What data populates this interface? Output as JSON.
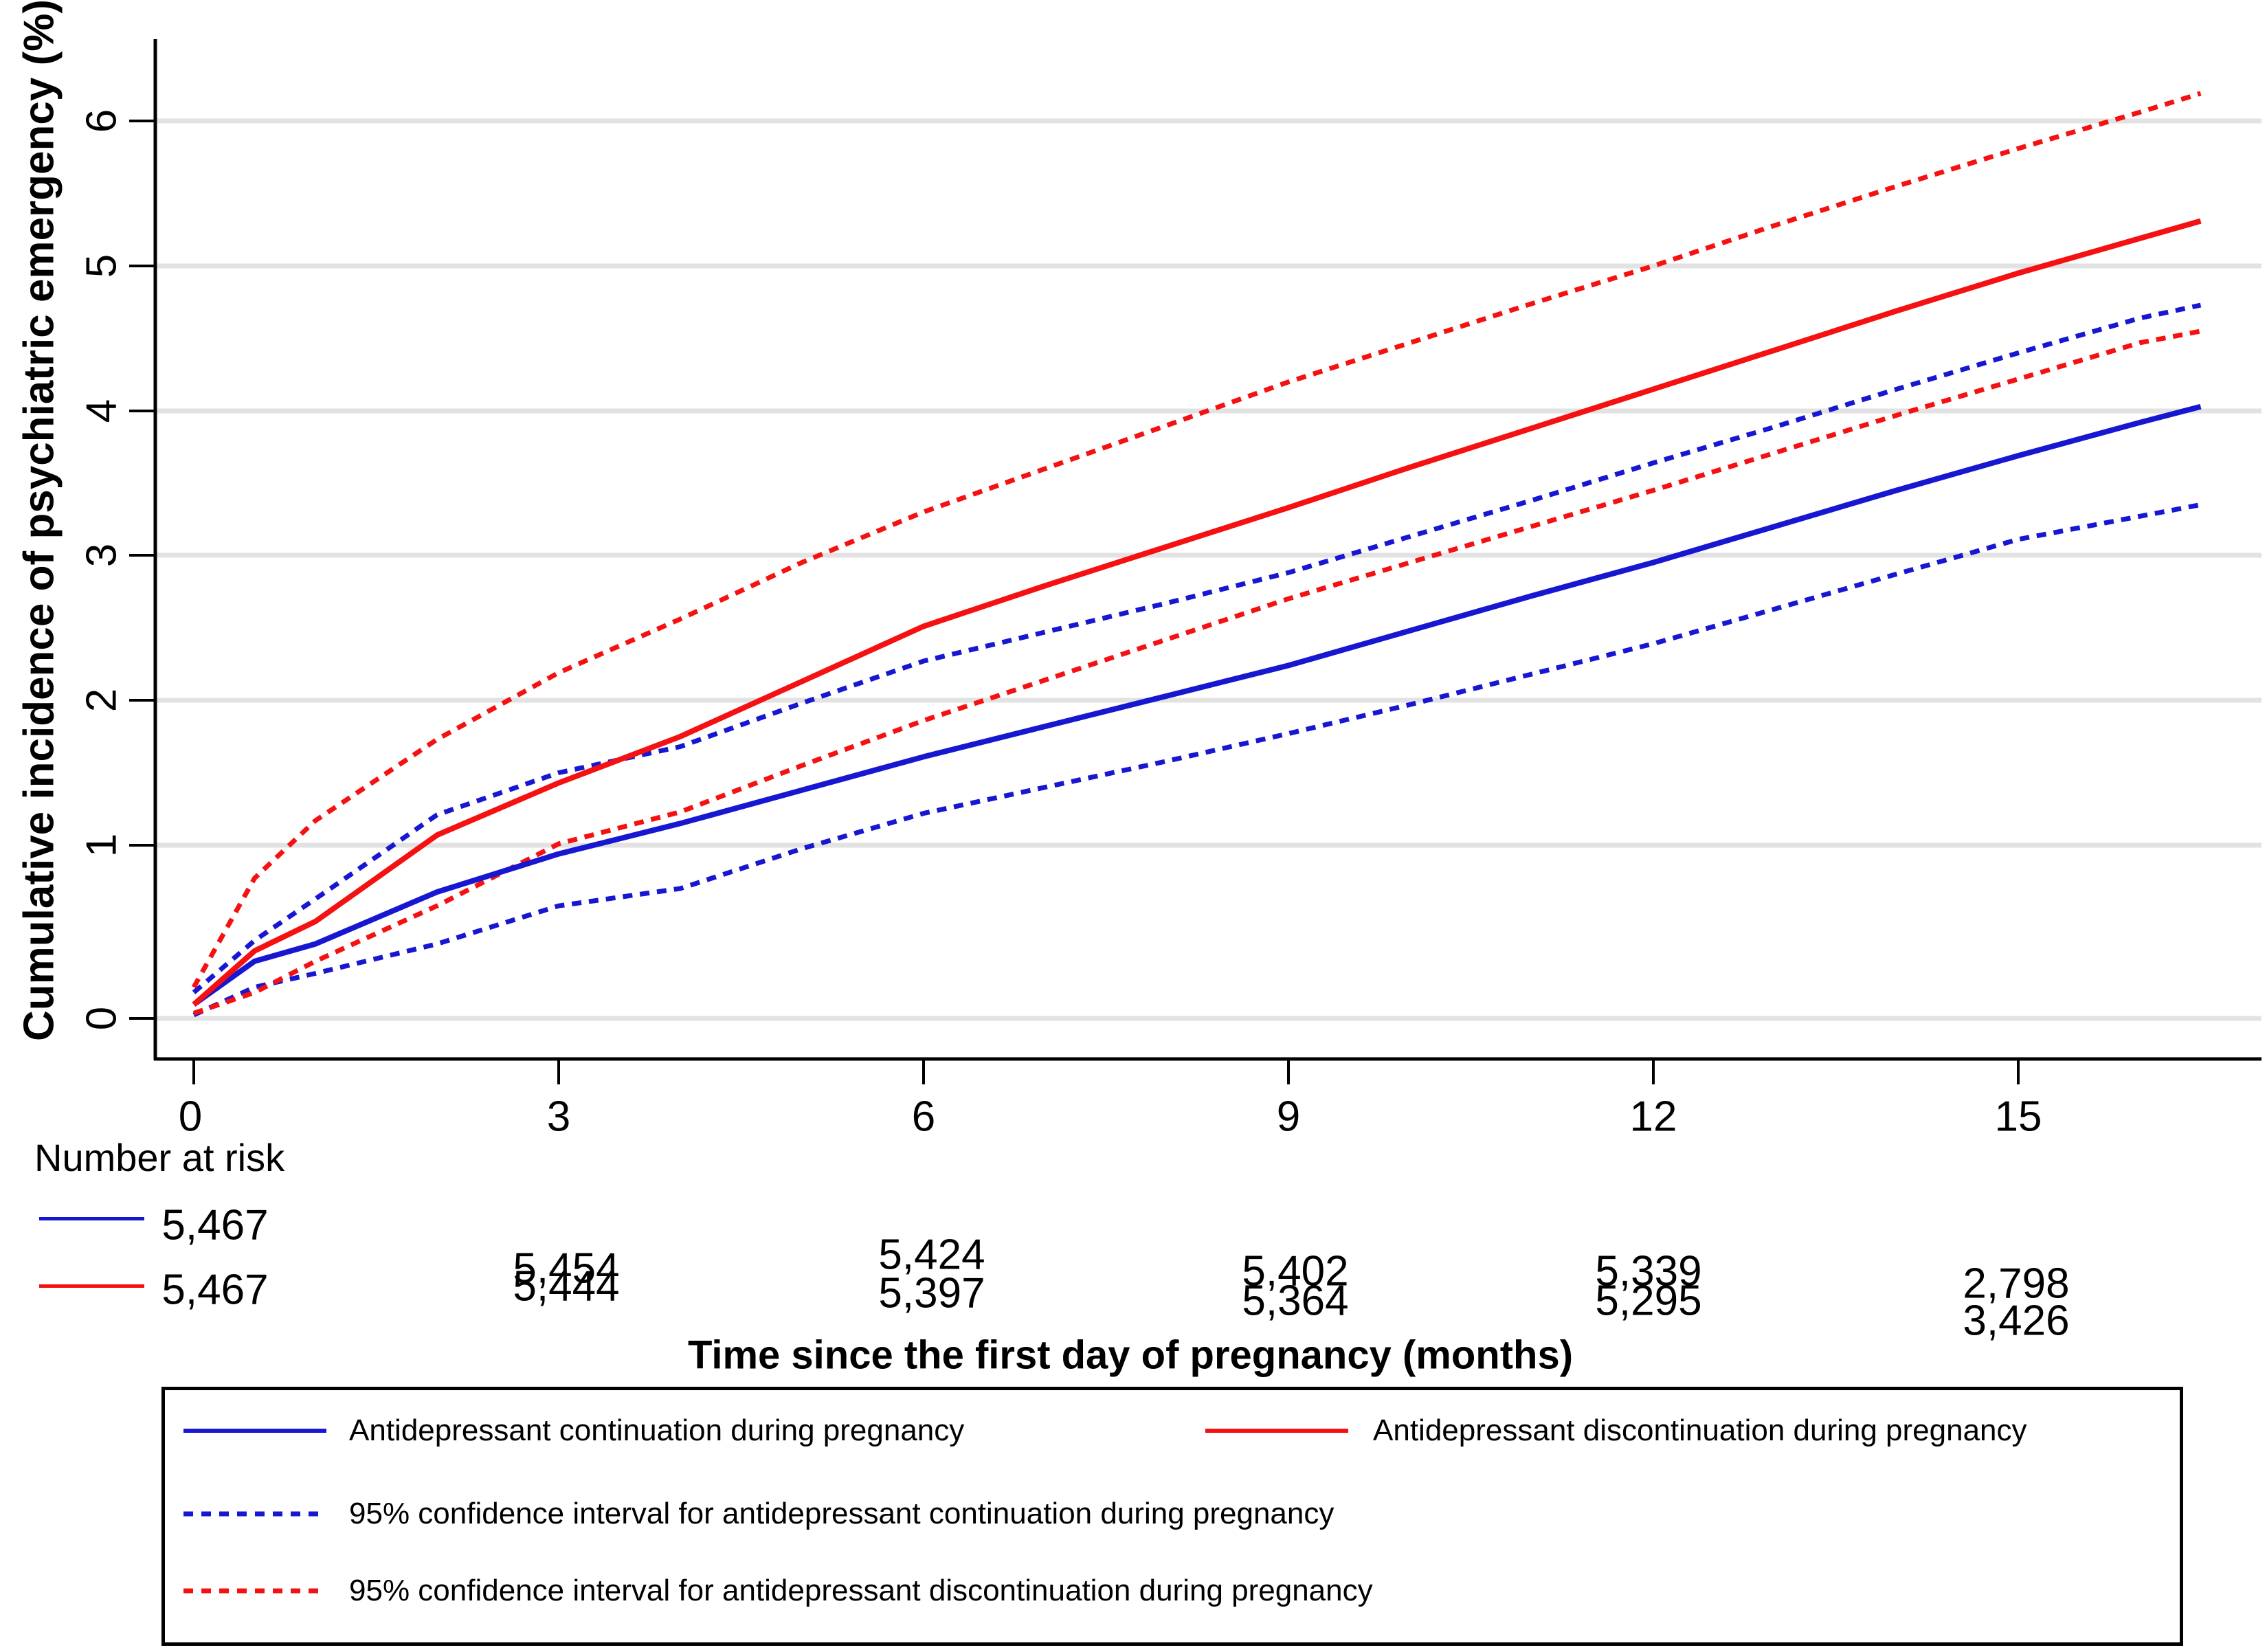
{
  "figure": {
    "y_axis": {
      "title": "Cumulative incidence of psychiatric emergency (%)",
      "tick_labels": [
        "0",
        "1",
        "2",
        "3",
        "4",
        "5",
        "6"
      ]
    },
    "x_axis": {
      "title": "Time since the first day of pregnancy (months)",
      "tick_labels": [
        "0",
        "3",
        "6",
        "9",
        "12",
        "15"
      ]
    },
    "risk_table": {
      "label": "Number at risk",
      "rows": [
        {
          "group": "continuation",
          "color": "#1717d2",
          "counts": [
            "5,467",
            "5,454",
            "5,424",
            "5,402",
            "5,339",
            "2,798"
          ]
        },
        {
          "group": "discontinuation",
          "color": "#f51111",
          "counts": [
            "5,467",
            "5,444",
            "5,397",
            "5,364",
            "5,295",
            "3,426"
          ]
        }
      ]
    },
    "legend": {
      "continuation_label": "Antidepressant continuation during pregnancy",
      "discontinuation_label": "Antidepressant discontinuation during pregnancy",
      "continuation_ci_label": "95% confidence interval for antidepressant continuation during pregnancy",
      "discontinuation_ci_label": "95% confidence interval for antidepressant discontinuation during pregnancy"
    },
    "colors": {
      "continuation": "#1717d2",
      "discontinuation": "#f51111",
      "gridline": "#e2e2e2",
      "axis": "#000000"
    }
  },
  "chart_data": {
    "type": "line",
    "title": "",
    "xlabel": "Time since the first day of pregnancy (months)",
    "ylabel": "Cumulative incidence of psychiatric emergency (%)",
    "xlim": [
      0,
      16.8
    ],
    "ylim": [
      0,
      6.5
    ],
    "grid": true,
    "legend_position": "bottom",
    "x_ticks": [
      0,
      3,
      6,
      9,
      12,
      15
    ],
    "y_ticks": [
      0,
      1,
      2,
      3,
      4,
      5,
      6
    ],
    "x": [
      0,
      0.5,
      1,
      2,
      3,
      4,
      5,
      6,
      7,
      8,
      9,
      10,
      11,
      12,
      13,
      14,
      15,
      16,
      16.5
    ],
    "series": [
      {
        "name": "Antidepressant continuation during pregnancy",
        "color": "#1717d2",
        "style": "solid",
        "values": [
          0.08,
          0.33,
          0.43,
          0.73,
          0.95,
          1.15,
          1.38,
          1.61,
          1.82,
          2.03,
          2.24,
          2.48,
          2.72,
          2.95,
          3.2,
          3.45,
          3.69,
          3.92,
          4.03
        ]
      },
      {
        "name": "Antidepressant discontinuation during pregnancy",
        "color": "#f51111",
        "style": "solid",
        "values": [
          0.08,
          0.39,
          0.56,
          1.07,
          1.43,
          1.75,
          2.13,
          2.51,
          2.79,
          3.06,
          3.33,
          3.61,
          3.88,
          4.15,
          4.42,
          4.69,
          4.95,
          5.19,
          5.31
        ]
      },
      {
        "name": "95% CI upper, continuation",
        "color": "#1717d2",
        "style": "dashed",
        "values": [
          0.15,
          0.45,
          0.69,
          1.21,
          1.5,
          1.68,
          1.98,
          2.27,
          2.47,
          2.67,
          2.88,
          3.13,
          3.38,
          3.64,
          3.89,
          4.15,
          4.4,
          4.64,
          4.73
        ]
      },
      {
        "name": "95% CI lower, continuation",
        "color": "#1717d2",
        "style": "dashed",
        "values": [
          0.02,
          0.18,
          0.26,
          0.43,
          0.65,
          0.75,
          0.98,
          1.22,
          1.4,
          1.58,
          1.77,
          1.97,
          2.18,
          2.39,
          2.63,
          2.87,
          3.11,
          3.27,
          3.35
        ]
      },
      {
        "name": "95% CI upper, discontinuation",
        "color": "#f51111",
        "style": "dashed",
        "values": [
          0.18,
          0.81,
          1.17,
          1.73,
          2.19,
          2.56,
          2.95,
          3.3,
          3.6,
          3.9,
          4.2,
          4.47,
          4.74,
          5.0,
          5.28,
          5.55,
          5.81,
          6.06,
          6.19
        ]
      },
      {
        "name": "95% CI lower, discontinuation",
        "color": "#f51111",
        "style": "dashed",
        "values": [
          0.03,
          0.15,
          0.33,
          0.65,
          1.01,
          1.23,
          1.55,
          1.86,
          2.14,
          2.42,
          2.7,
          2.95,
          3.2,
          3.45,
          3.71,
          3.97,
          4.22,
          4.47,
          4.55
        ]
      }
    ],
    "number_at_risk": {
      "times": [
        0,
        3,
        6,
        9,
        12,
        15
      ],
      "continuation": [
        5467,
        5454,
        5424,
        5402,
        5339,
        2798
      ],
      "discontinuation": [
        5467,
        5444,
        5397,
        5364,
        5295,
        3426
      ]
    }
  }
}
